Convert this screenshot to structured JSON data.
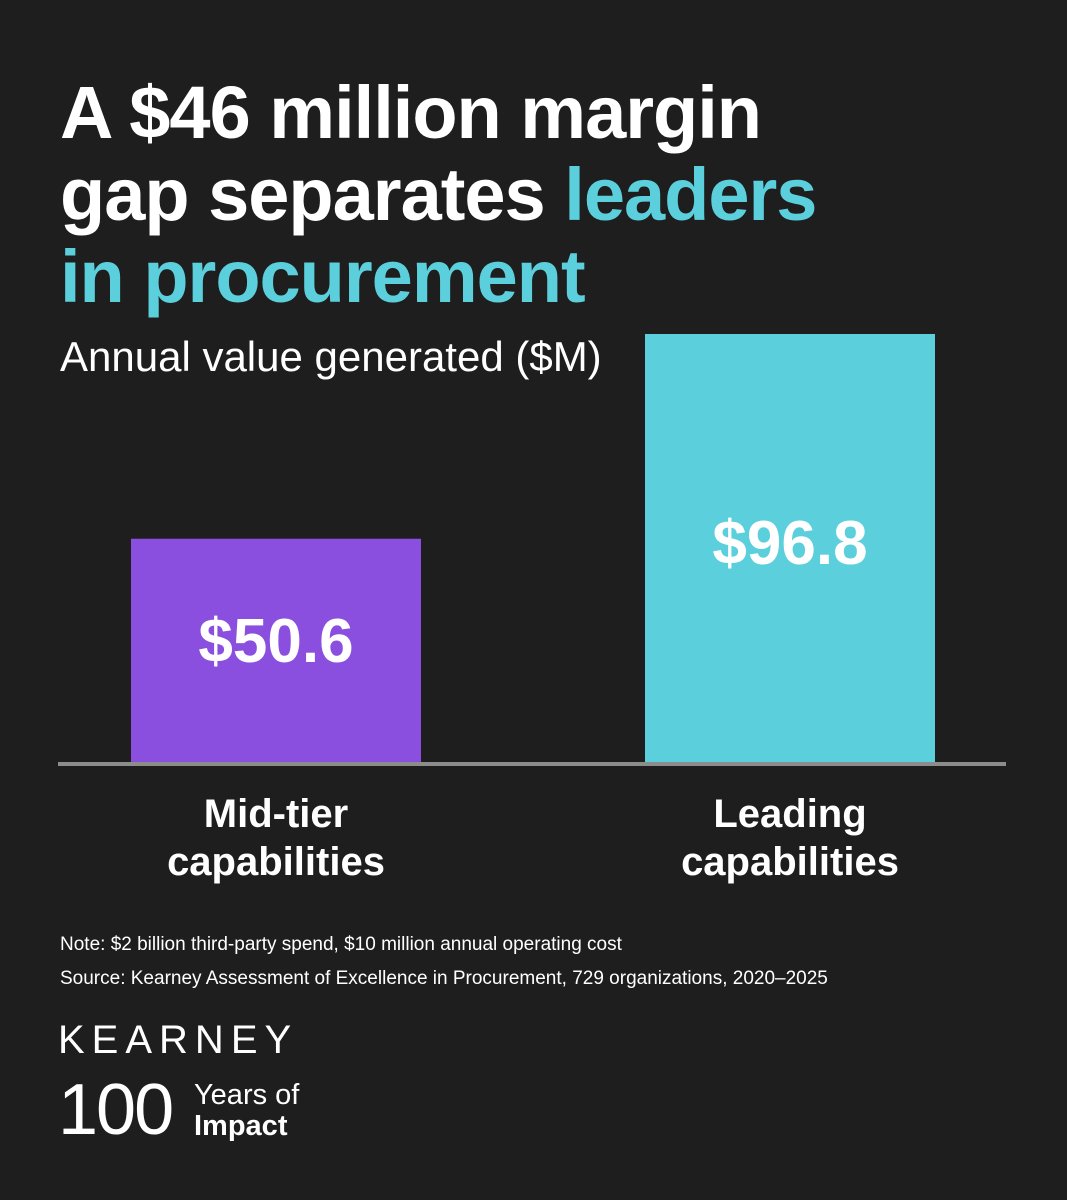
{
  "title": {
    "line1": "A $46 million margin",
    "line2_plain": "gap separates ",
    "line2_accent": "leaders",
    "line3_accent": "in procurement"
  },
  "subtitle": "Annual value generated ($M)",
  "chart_data": {
    "type": "bar",
    "categories": [
      "Mid-tier\ncapabilities",
      "Leading\ncapabilities"
    ],
    "values": [
      50.6,
      96.8
    ],
    "data_labels": [
      "$50.6",
      "$96.8"
    ],
    "colors": [
      "#8b4fe0",
      "#5ccfdc"
    ],
    "title": "A $46 million margin gap separates leaders in procurement",
    "ylabel": "Annual value generated ($M)",
    "ylim": [
      0,
      96.8
    ],
    "grid": false
  },
  "footer": {
    "note": "Note: $2 billion third-party spend, $10 million annual operating cost",
    "source": "Source: Kearney Assessment of Excellence in Procurement, 729 organizations, 2020–2025"
  },
  "brand": {
    "logo_text": "KEARNEY",
    "hundred": "100",
    "years_of": "Years of",
    "impact": "Impact"
  },
  "colors": {
    "background": "#1e1e1e",
    "accent": "#5ccfdc",
    "mid_tier": "#8b4fe0",
    "baseline": "#8c8c8c"
  }
}
